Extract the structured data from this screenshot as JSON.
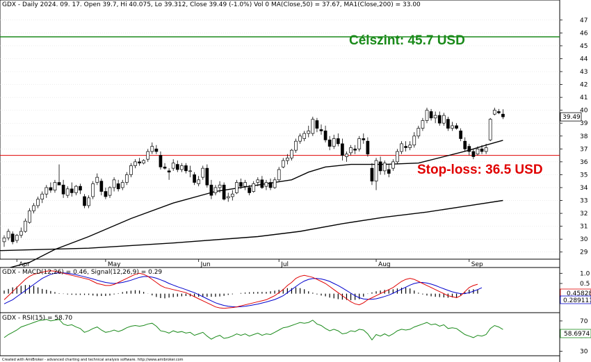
{
  "chart_data": {
    "type": "candlestick",
    "header": "GDX - Daily 2024. 09. 17. Open 39.7, Hi 40.075, Lo 39.312, Close 39.49 (-1.0%) Vol 0 MA(Close,50) = 37.67, MA1(Close,200) = 33.00",
    "ylim": [
      28.5,
      48.5
    ],
    "y_ticks": [
      29,
      30,
      31,
      32,
      33,
      34,
      35,
      36,
      37,
      38,
      39,
      40,
      41,
      42,
      43,
      44,
      45,
      46,
      47
    ],
    "x_month_labels": [
      {
        "label": "Apr",
        "bar": 3
      },
      {
        "label": "May",
        "bar": 24
      },
      {
        "label": "Jun",
        "bar": 46
      },
      {
        "label": "Jul",
        "bar": 65
      },
      {
        "label": "Aug",
        "bar": 88
      },
      {
        "label": "Sep",
        "bar": 110
      }
    ],
    "last_price_label": "39.49",
    "target_level": 45.7,
    "target_label": "Célszint: 45.7 USD",
    "stoploss_level": 36.5,
    "stoploss_label": "Stop-loss: 36.5 USD",
    "colors": {
      "up": "#ffffff",
      "down": "#000000",
      "target": "#1a8a1a",
      "stoploss": "#e00000",
      "ma": "#000000"
    },
    "candles": [
      [
        29.8,
        30.3,
        29.4,
        30.1
      ],
      [
        30.1,
        30.8,
        29.9,
        30.6
      ],
      [
        30.4,
        30.6,
        29.6,
        29.8
      ],
      [
        29.9,
        30.4,
        29.7,
        30.3
      ],
      [
        30.3,
        30.9,
        30.1,
        30.6
      ],
      [
        30.6,
        31.6,
        30.5,
        31.4
      ],
      [
        31.3,
        32.4,
        31.2,
        32.2
      ],
      [
        32.2,
        32.8,
        32.0,
        32.6
      ],
      [
        32.6,
        33.3,
        32.4,
        33.1
      ],
      [
        33.1,
        33.7,
        32.8,
        33.5
      ],
      [
        33.5,
        34.2,
        33.2,
        34.0
      ],
      [
        34.0,
        34.4,
        33.6,
        33.8
      ],
      [
        33.8,
        34.6,
        33.6,
        34.4
      ],
      [
        34.4,
        35.8,
        34.2,
        34.2
      ],
      [
        34.2,
        34.6,
        33.2,
        33.5
      ],
      [
        33.4,
        34.1,
        33.2,
        33.9
      ],
      [
        33.9,
        34.4,
        33.3,
        33.6
      ],
      [
        33.6,
        34.2,
        33.4,
        34.1
      ],
      [
        34.1,
        34.3,
        33.5,
        33.8
      ],
      [
        33.3,
        33.5,
        32.4,
        32.6
      ],
      [
        32.6,
        33.4,
        32.4,
        33.2
      ],
      [
        33.3,
        34.5,
        33.1,
        34.3
      ],
      [
        34.4,
        35.1,
        34.2,
        34.8
      ],
      [
        34.5,
        34.7,
        33.4,
        33.7
      ],
      [
        33.7,
        34.0,
        33.1,
        33.3
      ],
      [
        33.4,
        34.1,
        33.2,
        34.0
      ],
      [
        34.0,
        34.8,
        33.7,
        34.6
      ],
      [
        34.3,
        34.6,
        33.7,
        33.9
      ],
      [
        34.0,
        34.6,
        33.8,
        34.4
      ],
      [
        34.4,
        35.2,
        34.2,
        35.0
      ],
      [
        35.0,
        35.9,
        34.8,
        35.7
      ],
      [
        35.7,
        36.2,
        35.5,
        36.0
      ],
      [
        36.0,
        36.3,
        35.7,
        35.9
      ],
      [
        35.9,
        36.2,
        35.8,
        36.1
      ],
      [
        36.2,
        37.0,
        36.0,
        36.8
      ],
      [
        36.8,
        37.5,
        36.6,
        37.2
      ],
      [
        37.0,
        37.3,
        36.6,
        36.8
      ],
      [
        36.5,
        36.8,
        35.4,
        35.6
      ],
      [
        35.6,
        35.9,
        35.4,
        35.5
      ],
      [
        35.3,
        35.5,
        34.6,
        35.2
      ],
      [
        35.5,
        36.2,
        35.3,
        35.9
      ],
      [
        35.8,
        36.1,
        35.2,
        35.4
      ],
      [
        35.4,
        35.9,
        35.2,
        35.7
      ],
      [
        35.7,
        35.9,
        35.1,
        35.3
      ],
      [
        35.3,
        35.7,
        34.8,
        35.3
      ],
      [
        35.0,
        35.2,
        34.2,
        34.4
      ],
      [
        34.3,
        34.9,
        34.1,
        34.6
      ],
      [
        34.8,
        35.7,
        34.6,
        35.5
      ],
      [
        35.5,
        35.8,
        34.0,
        34.2
      ],
      [
        34.2,
        34.6,
        33.1,
        33.4
      ],
      [
        33.6,
        34.2,
        33.4,
        34.0
      ],
      [
        34.0,
        34.5,
        33.6,
        34.2
      ],
      [
        34.2,
        34.4,
        33.0,
        33.1
      ],
      [
        33.2,
        33.6,
        32.9,
        33.3
      ],
      [
        33.3,
        33.8,
        33.0,
        33.5
      ],
      [
        33.6,
        34.6,
        33.5,
        34.4
      ],
      [
        34.4,
        34.7,
        33.9,
        34.1
      ],
      [
        34.1,
        34.6,
        33.8,
        34.4
      ],
      [
        34.0,
        34.2,
        33.4,
        33.6
      ],
      [
        33.7,
        34.5,
        33.6,
        34.3
      ],
      [
        34.4,
        34.8,
        34.1,
        34.6
      ],
      [
        34.6,
        34.9,
        33.9,
        34.0
      ],
      [
        34.1,
        34.6,
        33.8,
        34.4
      ],
      [
        34.4,
        34.7,
        33.8,
        34.0
      ],
      [
        34.0,
        34.8,
        33.9,
        34.6
      ],
      [
        34.6,
        35.6,
        34.5,
        35.4
      ],
      [
        35.6,
        36.3,
        35.5,
        36.1
      ],
      [
        36.1,
        36.6,
        35.8,
        36.3
      ],
      [
        36.3,
        37.0,
        36.1,
        36.9
      ],
      [
        36.9,
        37.8,
        36.7,
        37.6
      ],
      [
        37.6,
        38.2,
        37.4,
        38.0
      ],
      [
        37.8,
        38.4,
        37.6,
        38.2
      ],
      [
        38.2,
        38.8,
        37.9,
        38.4
      ],
      [
        38.2,
        39.5,
        38.0,
        39.3
      ],
      [
        39.2,
        39.4,
        38.3,
        38.6
      ],
      [
        38.5,
        38.9,
        38.1,
        38.4
      ],
      [
        38.4,
        38.8,
        37.5,
        37.7
      ],
      [
        37.7,
        38.0,
        36.9,
        37.2
      ],
      [
        37.2,
        38.1,
        37.0,
        37.8
      ],
      [
        37.8,
        38.2,
        37.2,
        37.4
      ],
      [
        37.4,
        37.8,
        36.1,
        36.5
      ],
      [
        36.4,
        36.8,
        36.0,
        36.6
      ],
      [
        36.7,
        37.3,
        36.5,
        37.1
      ],
      [
        37.0,
        37.3,
        36.6,
        36.9
      ],
      [
        37.0,
        38.0,
        36.8,
        37.8
      ],
      [
        37.8,
        38.2,
        37.4,
        37.7
      ],
      [
        37.6,
        37.9,
        36.4,
        36.6
      ],
      [
        35.5,
        35.9,
        34.2,
        34.5
      ],
      [
        34.5,
        36.3,
        33.8,
        36.1
      ],
      [
        36.0,
        36.4,
        35.0,
        35.3
      ],
      [
        35.3,
        36.1,
        35.0,
        35.9
      ],
      [
        35.4,
        35.8,
        34.8,
        35.1
      ],
      [
        35.5,
        36.2,
        35.3,
        36.0
      ],
      [
        36.0,
        37.0,
        35.8,
        36.8
      ],
      [
        36.8,
        37.6,
        36.6,
        37.4
      ],
      [
        37.2,
        37.6,
        36.8,
        37.1
      ],
      [
        37.1,
        37.6,
        36.9,
        37.3
      ],
      [
        37.3,
        38.3,
        37.1,
        38.0
      ],
      [
        38.0,
        38.8,
        37.8,
        38.6
      ],
      [
        38.6,
        39.4,
        38.4,
        39.2
      ],
      [
        39.2,
        40.2,
        39.0,
        40.0
      ],
      [
        39.9,
        40.1,
        39.2,
        39.4
      ],
      [
        39.4,
        39.9,
        39.0,
        39.6
      ],
      [
        39.6,
        39.9,
        38.8,
        39.0
      ],
      [
        39.0,
        39.8,
        38.8,
        39.6
      ],
      [
        39.3,
        39.5,
        38.4,
        38.6
      ],
      [
        38.6,
        39.1,
        38.4,
        38.8
      ],
      [
        38.8,
        39.0,
        38.5,
        38.6
      ],
      [
        38.4,
        38.6,
        37.6,
        37.8
      ],
      [
        37.6,
        37.9,
        36.8,
        37.0
      ],
      [
        37.2,
        37.4,
        36.5,
        36.8
      ],
      [
        36.8,
        37.0,
        36.2,
        36.4
      ],
      [
        36.6,
        37.2,
        36.5,
        37.0
      ],
      [
        37.0,
        37.3,
        36.6,
        36.8
      ],
      [
        36.8,
        37.4,
        36.6,
        37.1
      ],
      [
        37.7,
        39.4,
        37.6,
        39.3
      ],
      [
        39.7,
        40.2,
        39.6,
        40.0
      ],
      [
        39.9,
        40.1,
        39.7,
        39.8
      ],
      [
        39.7,
        40.075,
        39.312,
        39.49
      ]
    ],
    "ma50_points": [
      [
        60,
        34.2
      ],
      [
        68,
        34.6
      ],
      [
        72,
        35.2
      ],
      [
        76,
        35.6
      ],
      [
        82,
        35.8
      ],
      [
        90,
        35.8
      ],
      [
        98,
        35.9
      ],
      [
        104,
        36.4
      ],
      [
        110,
        36.9
      ],
      [
        114,
        37.3
      ],
      [
        118,
        37.67
      ]
    ],
    "ma200_points": [
      [
        -2,
        29.1
      ],
      [
        20,
        29.3
      ],
      [
        40,
        29.7
      ],
      [
        60,
        30.2
      ],
      [
        70,
        30.6
      ],
      [
        80,
        31.2
      ],
      [
        90,
        31.7
      ],
      [
        100,
        32.1
      ],
      [
        110,
        32.6
      ],
      [
        118,
        33.0
      ]
    ],
    "ma50_early": [
      [
        -2,
        27.5
      ],
      [
        6,
        28.2
      ],
      [
        12,
        29.2
      ],
      [
        20,
        30.2
      ],
      [
        30,
        31.6
      ],
      [
        40,
        32.8
      ],
      [
        50,
        33.7
      ],
      [
        58,
        34.1
      ]
    ],
    "macd": {
      "label": "GDX - MACD(12,26) = 0.46, Signal(12,26,9) = 0.29",
      "macd_value_label": "0.45828",
      "signal_value_label": "0.289111",
      "ylim": [
        -0.9,
        1.25
      ],
      "y_ticks": [
        0.5,
        1.0
      ],
      "macd": [
        -0.3,
        -0.1,
        0.1,
        0.3,
        0.5,
        0.7,
        0.85,
        0.95,
        1.0,
        1.05,
        1.1,
        1.12,
        1.1,
        1.05,
        1.0,
        0.95,
        0.9,
        0.85,
        0.8,
        0.75,
        0.7,
        0.6,
        0.5,
        0.45,
        0.4,
        0.4,
        0.45,
        0.55,
        0.65,
        0.75,
        0.85,
        0.95,
        1.0,
        0.95,
        0.85,
        0.7,
        0.55,
        0.4,
        0.3,
        0.25,
        0.2,
        0.15,
        0.1,
        0.05,
        -0.05,
        -0.15,
        -0.25,
        -0.35,
        -0.45,
        -0.55,
        -0.65,
        -0.7,
        -0.72,
        -0.7,
        -0.68,
        -0.65,
        -0.6,
        -0.55,
        -0.5,
        -0.45,
        -0.4,
        -0.35,
        -0.3,
        -0.2,
        -0.1,
        0.05,
        0.2,
        0.4,
        0.55,
        0.75,
        0.85,
        0.9,
        0.85,
        0.8,
        0.7,
        0.6,
        0.5,
        0.35,
        0.2,
        0.05,
        -0.1,
        -0.25,
        -0.4,
        -0.5,
        -0.55,
        -0.45,
        -0.3,
        -0.2,
        -0.1,
        0.0,
        0.1,
        0.2,
        0.3,
        0.45,
        0.6,
        0.7,
        0.75,
        0.7,
        0.6,
        0.5,
        0.4,
        0.3,
        0.2,
        0.1,
        0.0,
        -0.1,
        -0.15,
        -0.2,
        -0.1,
        0.1,
        0.3,
        0.4,
        0.46
      ],
      "signal": [
        -0.5,
        -0.4,
        -0.3,
        -0.15,
        0.0,
        0.15,
        0.3,
        0.45,
        0.6,
        0.75,
        0.85,
        0.95,
        1.0,
        1.02,
        1.02,
        1.0,
        0.97,
        0.93,
        0.88,
        0.83,
        0.78,
        0.72,
        0.66,
        0.6,
        0.55,
        0.52,
        0.5,
        0.52,
        0.55,
        0.6,
        0.66,
        0.73,
        0.8,
        0.84,
        0.84,
        0.81,
        0.76,
        0.68,
        0.6,
        0.5,
        0.42,
        0.34,
        0.27,
        0.2,
        0.12,
        0.05,
        -0.05,
        -0.15,
        -0.25,
        -0.35,
        -0.45,
        -0.52,
        -0.58,
        -0.62,
        -0.64,
        -0.65,
        -0.64,
        -0.62,
        -0.59,
        -0.55,
        -0.51,
        -0.46,
        -0.41,
        -0.35,
        -0.29,
        -0.2,
        -0.1,
        0.05,
        0.2,
        0.35,
        0.5,
        0.62,
        0.7,
        0.74,
        0.75,
        0.72,
        0.67,
        0.6,
        0.5,
        0.4,
        0.28,
        0.15,
        0.02,
        -0.1,
        -0.2,
        -0.26,
        -0.28,
        -0.28,
        -0.25,
        -0.2,
        -0.14,
        -0.07,
        0.02,
        0.12,
        0.22,
        0.32,
        0.42,
        0.5,
        0.54,
        0.55,
        0.52,
        0.47,
        0.4,
        0.32,
        0.24,
        0.16,
        0.09,
        0.04,
        0.0,
        0.0,
        0.05,
        0.12,
        0.2,
        0.29
      ]
    },
    "rsi": {
      "label": "GDX - RSI(15) = 58.70",
      "value_label": "58.6974",
      "ylim": [
        25,
        80
      ],
      "y_ticks": [
        30,
        50,
        70
      ],
      "values": [
        48,
        52,
        55,
        58,
        62,
        64,
        66,
        68,
        70,
        71,
        72,
        70,
        71,
        72,
        66,
        64,
        65,
        62,
        60,
        55,
        57,
        60,
        62,
        58,
        55,
        56,
        58,
        56,
        58,
        61,
        63,
        64,
        63,
        64,
        66,
        67,
        63,
        57,
        56,
        54,
        57,
        55,
        56,
        54,
        55,
        51,
        53,
        55,
        50,
        46,
        49,
        51,
        47,
        48,
        50,
        53,
        51,
        53,
        50,
        52,
        54,
        51,
        53,
        52,
        55,
        58,
        61,
        62,
        64,
        66,
        68,
        67,
        68,
        71,
        66,
        64,
        60,
        57,
        59,
        57,
        53,
        54,
        57,
        56,
        59,
        58,
        53,
        45,
        52,
        50,
        53,
        50,
        53,
        57,
        59,
        58,
        59,
        62,
        64,
        66,
        68,
        65,
        66,
        63,
        65,
        60,
        61,
        60,
        56,
        52,
        50,
        48,
        51,
        50,
        52,
        60,
        64,
        62,
        58.7
      ]
    },
    "footer": "Created with AmiBroker - advanced charting and technical analysis software. http://www.amibroker.com"
  }
}
